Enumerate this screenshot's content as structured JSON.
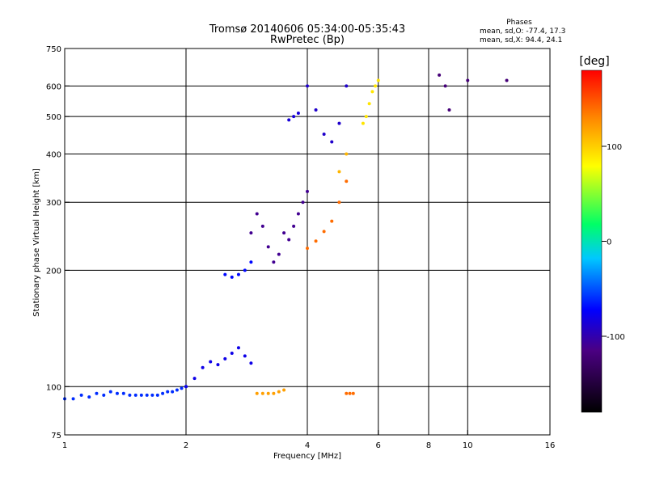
{
  "chart_data": {
    "type": "scatter",
    "title": "Tromsø 20140606 05:34:00-05:35:43",
    "subtitle": "RwPretec (Bp)",
    "xlabel": "Frequency [MHz]",
    "ylabel": "Stationary phase Virtual Height [km]",
    "x_scale": "log2",
    "y_scale": "log",
    "xlim": [
      1,
      16
    ],
    "ylim": [
      75,
      750
    ],
    "x_ticks": [
      "1",
      "2",
      "4",
      "6",
      "8",
      "10",
      "16"
    ],
    "x_tick_values": [
      1,
      2,
      4,
      6,
      8,
      10,
      16
    ],
    "y_ticks": [
      "750",
      "600",
      "500",
      "400",
      "300",
      "200",
      "100",
      "75"
    ],
    "y_tick_values": [
      750,
      600,
      500,
      400,
      300,
      200,
      100,
      75
    ],
    "grid": true,
    "phases_legend": {
      "heading": "Phases",
      "line_o": "mean, sd,O: -77.4, 17.3",
      "line_x": "mean, sd,X: 94.4, 24.1"
    },
    "colorbar": {
      "label": "[deg]",
      "ticks": [
        "100",
        "0",
        "-100"
      ],
      "tick_values": [
        100,
        0,
        -100
      ],
      "range": [
        -180,
        180
      ],
      "colormap": "rainbow"
    },
    "series": [
      {
        "x": [
          1.0,
          1.05,
          1.1,
          1.15,
          1.2,
          1.25,
          1.3,
          1.35,
          1.4,
          1.45,
          1.5,
          1.55,
          1.6,
          1.65,
          1.7,
          1.75,
          1.8,
          1.85,
          1.9,
          1.95,
          2.0
        ],
        "y": [
          93,
          93,
          95,
          94,
          96,
          95,
          97,
          96,
          96,
          95,
          95,
          95,
          95,
          95,
          95,
          96,
          97,
          97,
          98,
          99,
          100
        ],
        "phase": -60
      },
      {
        "x": [
          2.0,
          2.1,
          2.2,
          2.3,
          2.4,
          2.5,
          2.6,
          2.7,
          2.8,
          2.9
        ],
        "y": [
          100,
          105,
          112,
          116,
          114,
          118,
          122,
          126,
          120,
          115
        ],
        "phase": -80
      },
      {
        "x": [
          2.5,
          2.6,
          2.7,
          2.8,
          2.9
        ],
        "y": [
          195,
          192,
          195,
          200,
          210
        ],
        "phase": -70
      },
      {
        "x": [
          2.9,
          3.0,
          3.1,
          3.2,
          3.3,
          3.4,
          3.5,
          3.6,
          3.7,
          3.8,
          3.9,
          4.0
        ],
        "y": [
          250,
          280,
          260,
          230,
          210,
          220,
          250,
          240,
          260,
          280,
          300,
          320
        ],
        "phase": -110
      },
      {
        "x": [
          3.0,
          3.1,
          3.2,
          3.3,
          3.4,
          3.5
        ],
        "y": [
          96,
          96,
          96,
          96,
          97,
          98
        ],
        "phase": 120
      },
      {
        "x": [
          3.6,
          3.7,
          3.8
        ],
        "y": [
          490,
          500,
          510
        ],
        "phase": -85
      },
      {
        "x": [
          4.0,
          4.2,
          4.4,
          4.6,
          4.8,
          5.0
        ],
        "y": [
          600,
          520,
          450,
          430,
          480,
          600
        ],
        "phase": -90
      },
      {
        "x": [
          4.0,
          4.2,
          4.4,
          4.6,
          4.8,
          5.0
        ],
        "y": [
          228,
          238,
          252,
          268,
          300,
          340
        ],
        "phase": 140
      },
      {
        "x": [
          4.8,
          5.0
        ],
        "y": [
          360,
          400
        ],
        "phase": 110
      },
      {
        "x": [
          5.5,
          5.6,
          5.7,
          5.8,
          5.9,
          6.0
        ],
        "y": [
          480,
          500,
          540,
          580,
          600,
          620
        ],
        "phase": 90
      },
      {
        "x": [
          5.0,
          5.1,
          5.2
        ],
        "y": [
          96,
          96,
          96
        ],
        "phase": 140
      },
      {
        "x": [
          8.5,
          8.8,
          9.0,
          10.0,
          12.5
        ],
        "y": [
          640,
          600,
          520,
          620,
          620
        ],
        "phase": -120
      }
    ]
  }
}
